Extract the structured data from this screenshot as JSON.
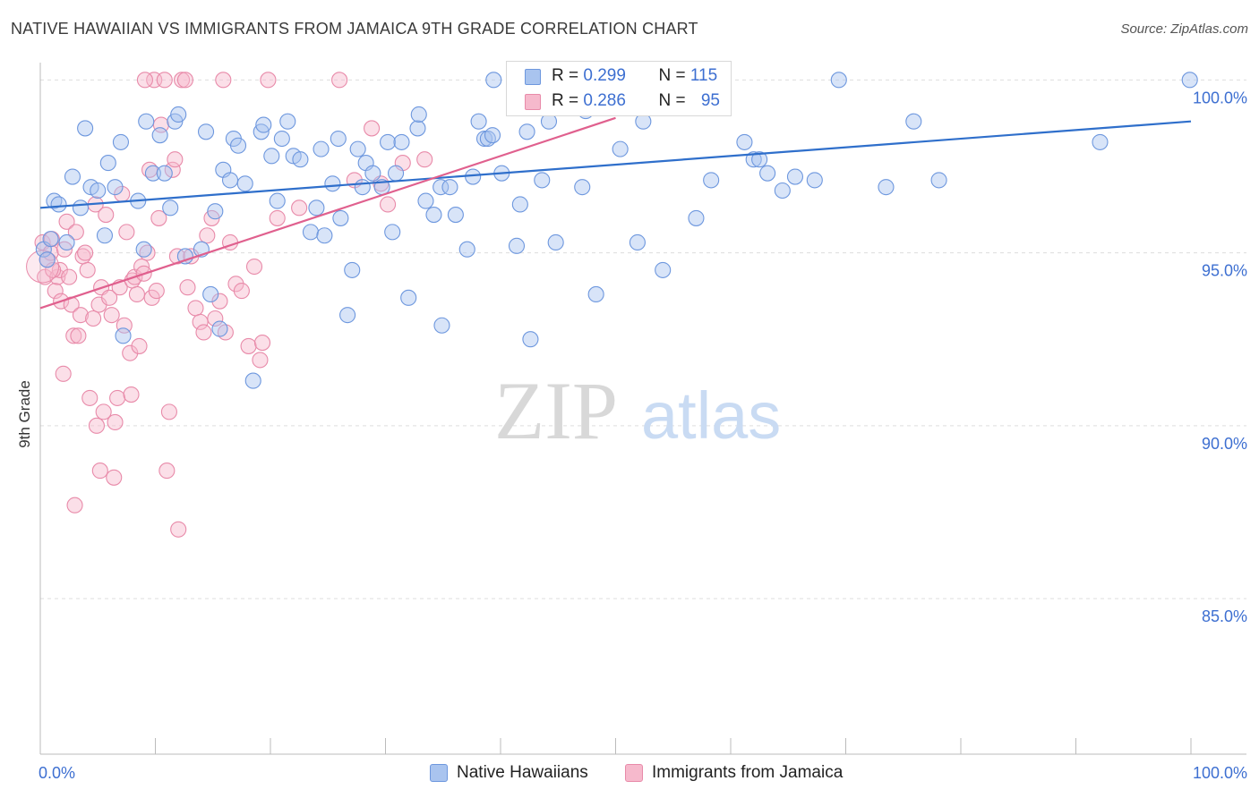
{
  "title": "NATIVE HAWAIIAN VS IMMIGRANTS FROM JAMAICA 9TH GRADE CORRELATION CHART",
  "source": "Source: ZipAtlas.com",
  "watermark": {
    "zip": "ZIP",
    "atlas": "atlas"
  },
  "colors": {
    "blue_fill": "#a9c4ef",
    "blue_stroke": "#6d97de",
    "blue_line": "#2f6fcb",
    "pink_fill": "#f6b9cc",
    "pink_stroke": "#e88aa9",
    "pink_line": "#e0608e",
    "axis_label": "#3d6fd1",
    "grid": "#dddddd"
  },
  "legend_top": {
    "rows": [
      {
        "r_label": "R = ",
        "r_value": "0.299",
        "n_label": "N = ",
        "n_value": "115"
      },
      {
        "r_label": "R = ",
        "r_value": "0.286",
        "n_label": "N = ",
        "n_value": "95"
      }
    ]
  },
  "legend_bottom": {
    "items": [
      "Native Hawaiians",
      "Immigrants from Jamaica"
    ]
  },
  "chart_data": {
    "type": "scatter",
    "title": "NATIVE HAWAIIAN VS IMMIGRANTS FROM JAMAICA 9TH GRADE CORRELATION CHART",
    "xlabel": "",
    "ylabel": "9th Grade",
    "xlim": [
      0,
      100
    ],
    "ylim": [
      80.5,
      100.5
    ],
    "x_tick_labels": [
      "0.0%",
      "100.0%"
    ],
    "y_ticks": [
      85,
      90,
      95,
      100
    ],
    "y_tick_labels": [
      "85.0%",
      "90.0%",
      "95.0%",
      "100.0%"
    ],
    "grid": true,
    "legend_position": "top-center",
    "series": [
      {
        "name": "Native Hawaiians",
        "color": "#a9c4ef",
        "r": 0.299,
        "n": 115,
        "trend": {
          "x": [
            0,
            100
          ],
          "y": [
            96.3,
            98.8
          ]
        },
        "points": [
          [
            0.3,
            95.1
          ],
          [
            0.6,
            94.8
          ],
          [
            0.9,
            95.4
          ],
          [
            1.2,
            96.5
          ],
          [
            1.6,
            96.4
          ],
          [
            2.3,
            95.3
          ],
          [
            2.8,
            97.2
          ],
          [
            3.5,
            96.3
          ],
          [
            3.9,
            98.6
          ],
          [
            4.4,
            96.9
          ],
          [
            5,
            96.8
          ],
          [
            5.6,
            95.5
          ],
          [
            5.9,
            97.6
          ],
          [
            6.5,
            96.9
          ],
          [
            7,
            98.2
          ],
          [
            7.2,
            92.6
          ],
          [
            8.5,
            96.5
          ],
          [
            9,
            95.1
          ],
          [
            9.2,
            98.8
          ],
          [
            9.8,
            97.3
          ],
          [
            10.4,
            98.4
          ],
          [
            10.8,
            97.3
          ],
          [
            11.3,
            96.3
          ],
          [
            11.7,
            98.8
          ],
          [
            12,
            99
          ],
          [
            12.6,
            94.9
          ],
          [
            14,
            95.1
          ],
          [
            14.4,
            98.5
          ],
          [
            14.8,
            93.8
          ],
          [
            15.2,
            96.2
          ],
          [
            15.6,
            92.8
          ],
          [
            15.9,
            97.4
          ],
          [
            16.5,
            97.1
          ],
          [
            16.8,
            98.3
          ],
          [
            17.2,
            98.1
          ],
          [
            17.8,
            97
          ],
          [
            18.5,
            91.3
          ],
          [
            19.2,
            98.5
          ],
          [
            19.4,
            98.7
          ],
          [
            20.1,
            97.8
          ],
          [
            20.6,
            96.5
          ],
          [
            21,
            98.3
          ],
          [
            21.5,
            98.8
          ],
          [
            22,
            97.8
          ],
          [
            22.6,
            97.7
          ],
          [
            23.5,
            95.6
          ],
          [
            24,
            96.3
          ],
          [
            24.4,
            98
          ],
          [
            24.7,
            95.5
          ],
          [
            25.4,
            97
          ],
          [
            25.9,
            98.3
          ],
          [
            26.1,
            96
          ],
          [
            26.7,
            93.2
          ],
          [
            27.1,
            94.5
          ],
          [
            27.6,
            98
          ],
          [
            28,
            96.9
          ],
          [
            28.3,
            97.6
          ],
          [
            28.9,
            97.3
          ],
          [
            29.7,
            96.9
          ],
          [
            30.2,
            98.2
          ],
          [
            30.6,
            95.6
          ],
          [
            30.9,
            97.3
          ],
          [
            31.4,
            98.2
          ],
          [
            32,
            93.7
          ],
          [
            32.8,
            98.6
          ],
          [
            32.9,
            99
          ],
          [
            33.5,
            96.5
          ],
          [
            34.2,
            96.1
          ],
          [
            34.8,
            96.9
          ],
          [
            34.9,
            92.9
          ],
          [
            35.6,
            96.9
          ],
          [
            36.1,
            96.1
          ],
          [
            37.1,
            95.1
          ],
          [
            37.6,
            97.2
          ],
          [
            38.1,
            98.8
          ],
          [
            38.6,
            98.3
          ],
          [
            38.9,
            98.3
          ],
          [
            39.3,
            98.4
          ],
          [
            39.4,
            100
          ],
          [
            40.1,
            97.3
          ],
          [
            41.4,
            95.2
          ],
          [
            41.7,
            96.4
          ],
          [
            42.3,
            98.5
          ],
          [
            42.6,
            92.5
          ],
          [
            42.9,
            100
          ],
          [
            43.6,
            97.1
          ],
          [
            44.2,
            98.8
          ],
          [
            44.8,
            95.3
          ],
          [
            45.2,
            100
          ],
          [
            45.6,
            100
          ],
          [
            46,
            100
          ],
          [
            46.5,
            100
          ],
          [
            47.1,
            96.9
          ],
          [
            47.4,
            99.1
          ],
          [
            48.3,
            93.8
          ],
          [
            50.4,
            98
          ],
          [
            51.9,
            95.3
          ],
          [
            52.4,
            98.8
          ],
          [
            53.6,
            100
          ],
          [
            54.1,
            94.5
          ],
          [
            55.4,
            100
          ],
          [
            57,
            96
          ],
          [
            58.3,
            97.1
          ],
          [
            59,
            100
          ],
          [
            61.2,
            98.2
          ],
          [
            62,
            97.7
          ],
          [
            62.5,
            97.7
          ],
          [
            63.2,
            97.3
          ],
          [
            64.5,
            96.8
          ],
          [
            65.6,
            97.2
          ],
          [
            67.3,
            97.1
          ],
          [
            69.4,
            100
          ],
          [
            73.5,
            96.9
          ],
          [
            75.9,
            98.8
          ],
          [
            78.1,
            97.1
          ],
          [
            92.1,
            98.2
          ],
          [
            99.9,
            100
          ]
        ]
      },
      {
        "name": "Immigrants from Jamaica",
        "color": "#f6b9cc",
        "r": 0.286,
        "n": 95,
        "trend": {
          "x": [
            0,
            50
          ],
          "y": [
            93.4,
            98.9
          ]
        },
        "points": [
          [
            0.2,
            95.3
          ],
          [
            0.4,
            94.3
          ],
          [
            0.6,
            94.8
          ],
          [
            0.9,
            95
          ],
          [
            1,
            95.4
          ],
          [
            1.3,
            93.9
          ],
          [
            1.5,
            94.3
          ],
          [
            1.7,
            94.5
          ],
          [
            1.8,
            93.6
          ],
          [
            2,
            91.5
          ],
          [
            2.3,
            95.9
          ],
          [
            2.5,
            94.3
          ],
          [
            2.7,
            93.5
          ],
          [
            2.9,
            92.6
          ],
          [
            3.1,
            95.6
          ],
          [
            3.3,
            92.6
          ],
          [
            3.5,
            93.2
          ],
          [
            3.7,
            94.9
          ],
          [
            3.9,
            95
          ],
          [
            4.1,
            94.5
          ],
          [
            4.3,
            90.8
          ],
          [
            4.6,
            93.1
          ],
          [
            4.8,
            96.4
          ],
          [
            5.1,
            93.5
          ],
          [
            5.3,
            94
          ],
          [
            5.5,
            90.4
          ],
          [
            5.7,
            96.1
          ],
          [
            6,
            93.7
          ],
          [
            6.2,
            93.2
          ],
          [
            6.4,
            88.5
          ],
          [
            6.7,
            90.8
          ],
          [
            6.9,
            94
          ],
          [
            7.1,
            96.7
          ],
          [
            7.3,
            92.9
          ],
          [
            7.5,
            95.6
          ],
          [
            7.8,
            92.1
          ],
          [
            8,
            94.2
          ],
          [
            8.2,
            94.3
          ],
          [
            8.4,
            93.8
          ],
          [
            8.6,
            92.3
          ],
          [
            8.8,
            94.6
          ],
          [
            9,
            94.4
          ],
          [
            9.3,
            95
          ],
          [
            9.5,
            97.4
          ],
          [
            9.7,
            93.7
          ],
          [
            9.9,
            100
          ],
          [
            10.1,
            93.9
          ],
          [
            10.3,
            96
          ],
          [
            10.5,
            98.7
          ],
          [
            10.8,
            100
          ],
          [
            11,
            88.7
          ],
          [
            11.2,
            90.4
          ],
          [
            11.5,
            97.4
          ],
          [
            11.7,
            97.7
          ],
          [
            11.9,
            94.9
          ],
          [
            12,
            87
          ],
          [
            12.3,
            100
          ],
          [
            12.8,
            94
          ],
          [
            13.1,
            94.9
          ],
          [
            13.5,
            93.4
          ],
          [
            13.9,
            93
          ],
          [
            14.2,
            92.7
          ],
          [
            14.5,
            95.5
          ],
          [
            14.9,
            96
          ],
          [
            15.2,
            93.1
          ],
          [
            15.6,
            93.6
          ],
          [
            16.1,
            92.7
          ],
          [
            16.5,
            95.3
          ],
          [
            17,
            94.1
          ],
          [
            17.5,
            93.9
          ],
          [
            18.1,
            92.3
          ],
          [
            18.6,
            94.6
          ],
          [
            19.1,
            91.9
          ],
          [
            19.3,
            92.4
          ],
          [
            19.8,
            100
          ],
          [
            20.6,
            96
          ],
          [
            22.5,
            96.3
          ],
          [
            26,
            100
          ],
          [
            27.3,
            97.1
          ],
          [
            28.8,
            98.6
          ],
          [
            29.6,
            97
          ],
          [
            30.2,
            96.4
          ],
          [
            31.5,
            97.6
          ],
          [
            33.4,
            97.7
          ],
          [
            3.0,
            87.7
          ],
          [
            4.9,
            90.0
          ],
          [
            5.2,
            88.7
          ],
          [
            6.5,
            90.1
          ],
          [
            7.9,
            90.9
          ],
          [
            9.1,
            100
          ],
          [
            15.9,
            100
          ],
          [
            12.6,
            100
          ],
          [
            2.1,
            95.1
          ],
          [
            1.1,
            94.5
          ]
        ]
      }
    ]
  },
  "y_axis_title": "9th Grade"
}
